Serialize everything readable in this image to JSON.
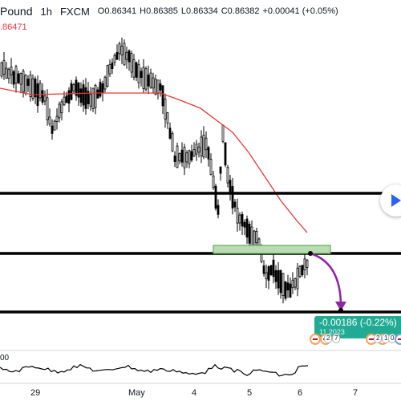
{
  "header": {
    "symbol": "Pound",
    "timeframe": "1h",
    "source": "FXCM",
    "ohlc": {
      "open": "O0.86341",
      "high": "H0.86385",
      "low": "L0.86334",
      "close": "C0.86382",
      "change": "+0.00041 (+0.05%)"
    }
  },
  "price_tag": ".86471",
  "measure": {
    "value_label": "-0.00186 (-0.22%) ",
    "sub_label": "11  2023"
  },
  "event_badges": [
    "2",
    "7",
    "2",
    "1",
    "0"
  ],
  "rsi": {
    "label": "00"
  },
  "x_axis": {
    "labels": [
      "29",
      "May",
      "4",
      "5",
      "6",
      "7"
    ]
  },
  "colors": {
    "candle": "#000000",
    "moving_average": "#e53935",
    "zone_fill": "#b9dcb0",
    "zone_stroke": "#5fae5f",
    "arrow": "#8e24aa",
    "measure_bg": "#22ab94",
    "play_icon": "#2962ff",
    "price_tag": "#f23645"
  },
  "icons": {
    "play": "play-icon",
    "flag": "uk-flag-icon",
    "eu_flag": "eu-flag-icon"
  },
  "chart_data": {
    "type": "candlestick",
    "interval": "1h",
    "x": [
      "29",
      "May",
      "4",
      "5",
      "6",
      "7"
    ],
    "horizontal_levels": [
      "support/resistance",
      "support/resistance",
      "support/resistance"
    ],
    "indicators": [
      "moving average (red)",
      "RSI (lower pane)"
    ]
  }
}
